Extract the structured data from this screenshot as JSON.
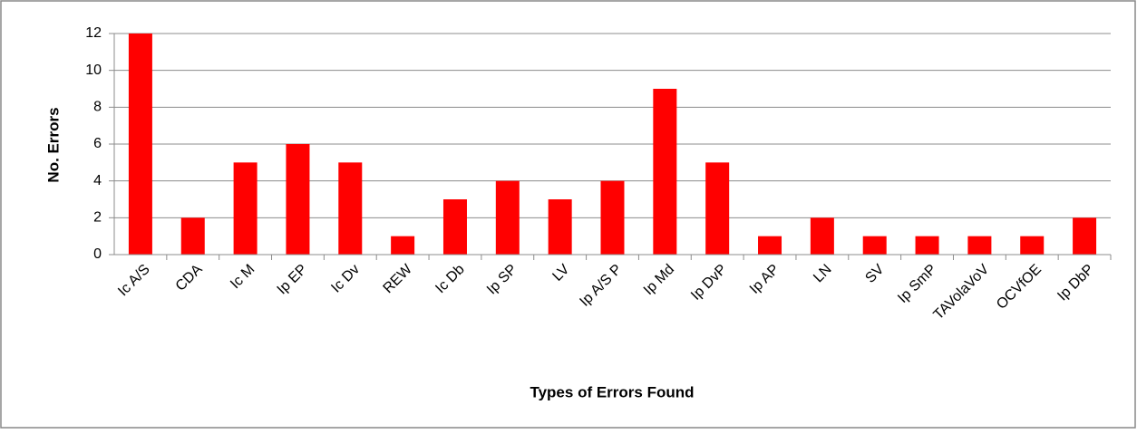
{
  "chart_data": {
    "type": "bar",
    "x_label": "Types of Errors Found",
    "y_label": "No. Errors",
    "categories": [
      "Ic A/S",
      "CDA",
      "Ic M",
      "Ip EP",
      "Ic Dv",
      "REW",
      "Ic Db",
      "Ip SP",
      "LV",
      "Ip A/S P",
      "Ip Md",
      "Ip DvP",
      "Ip AP",
      "LN",
      "SV",
      "Ip SmP",
      "TAVolaVoV",
      "OCVfOE",
      "Ip DbP"
    ],
    "values": [
      12,
      2,
      5,
      6,
      5,
      1,
      3,
      4,
      3,
      4,
      9,
      5,
      1,
      2,
      1,
      1,
      1,
      1,
      2
    ],
    "color": "#ff0000",
    "ylim": [
      0,
      12
    ],
    "yticks": [
      0,
      2,
      4,
      6,
      8,
      10,
      12
    ],
    "grid": true
  }
}
